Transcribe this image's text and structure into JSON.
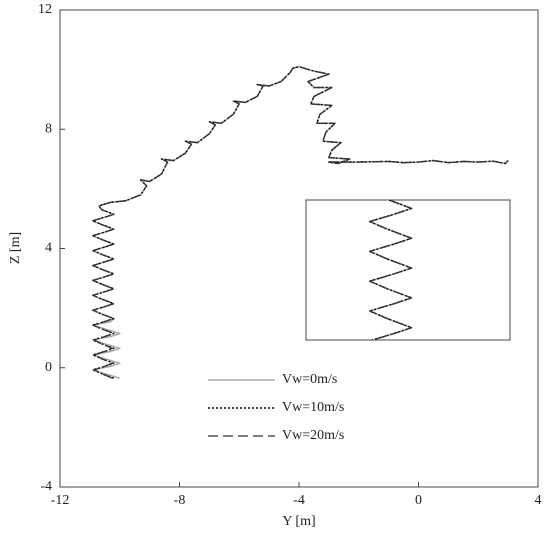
{
  "chart_data": {
    "type": "line",
    "xlabel": "Y [m]",
    "ylabel": "Z [m]",
    "xlim": [
      -12,
      4
    ],
    "ylim": [
      -4,
      12
    ],
    "xticks": [
      -12,
      -8,
      -4,
      0,
      4
    ],
    "yticks": [
      -4,
      0,
      4,
      8,
      12
    ],
    "series": [
      {
        "name": "Vw=0m/s",
        "color": "#aaaaaa",
        "style": "solid",
        "x": [
          -10.0,
          -10.5,
          -10.9,
          -10.3,
          -10.0,
          -10.5,
          -10.9,
          -10.3,
          -10.0,
          -10.5,
          -10.9,
          -10.3,
          -10.0,
          -10.5,
          -10.9,
          -10.3,
          -10.2,
          -10.6,
          -10.9,
          -10.5,
          -10.2,
          -10.6,
          -10.9,
          -10.5,
          -10.2,
          -10.6,
          -10.9,
          -10.5,
          -10.2,
          -10.6,
          -10.9,
          -10.5,
          -10.2,
          -10.6,
          -10.9,
          -10.5,
          -10.2,
          -10.6,
          -10.9,
          -10.5,
          -10.2,
          -10.6,
          -10.9,
          -10.5,
          -10.2,
          -10.6,
          -10.7,
          -10.3,
          -9.8,
          -9.3,
          -9.1,
          -9.3,
          -9.0,
          -8.6,
          -8.4,
          -8.6,
          -8.2,
          -7.8,
          -7.6,
          -7.8,
          -7.4,
          -7.0,
          -6.8,
          -7.0,
          -6.6,
          -6.2,
          -6.0,
          -6.2,
          -5.8,
          -5.4,
          -5.2,
          -5.4,
          -5.0,
          -4.6,
          -4.3,
          -4.2,
          -4.0,
          -3.5,
          -3.0,
          -3.7,
          -3.5,
          -2.9,
          -3.5,
          -3.6,
          -2.9,
          -3.3,
          -3.4,
          -2.8,
          -3.1,
          -3.2,
          -2.6,
          -2.9,
          -3.0,
          -2.3,
          -2.7,
          -3.0,
          -2.0,
          -1.0,
          -0.5,
          0,
          0.5,
          1,
          1.5,
          2,
          2.5,
          2.9,
          3.0
        ],
        "values": [
          -0.35,
          -0.2,
          -0.07,
          0.05,
          0.15,
          0.3,
          0.43,
          0.55,
          0.65,
          0.8,
          0.93,
          1.05,
          1.15,
          1.3,
          1.43,
          1.55,
          1.65,
          1.8,
          1.93,
          2.05,
          2.15,
          2.3,
          2.43,
          2.55,
          2.65,
          2.8,
          2.93,
          3.05,
          3.15,
          3.3,
          3.43,
          3.55,
          3.65,
          3.8,
          3.93,
          4.05,
          4.15,
          4.3,
          4.43,
          4.55,
          4.65,
          4.8,
          4.93,
          5.05,
          5.15,
          5.3,
          5.43,
          5.55,
          5.6,
          5.8,
          6.1,
          6.3,
          6.25,
          6.5,
          6.9,
          7.0,
          6.95,
          7.2,
          7.5,
          7.6,
          7.55,
          7.85,
          8.15,
          8.25,
          8.2,
          8.5,
          8.85,
          8.95,
          8.9,
          9.1,
          9.45,
          9.5,
          9.45,
          9.6,
          9.9,
          10.05,
          10.1,
          9.95,
          9.85,
          9.6,
          9.4,
          9.4,
          9.1,
          8.85,
          8.8,
          8.5,
          8.2,
          8.2,
          7.9,
          7.6,
          7.55,
          7.3,
          7.05,
          7.0,
          6.85,
          6.9,
          6.9,
          6.92,
          6.88,
          6.9,
          6.95,
          6.88,
          6.92,
          6.9,
          6.93,
          6.85,
          6.95
        ]
      },
      {
        "name": "Vw=10m/s",
        "color": "#000000",
        "style": "dotted",
        "x": [
          -10.2,
          -10.6,
          -10.9,
          -10.5,
          -10.2,
          -10.6,
          -10.9,
          -10.5,
          -10.2,
          -10.6,
          -10.9,
          -10.5,
          -10.2,
          -10.6,
          -10.9,
          -10.5,
          -10.2,
          -10.6,
          -10.9,
          -10.5,
          -10.2,
          -10.6,
          -10.9,
          -10.5,
          -10.2,
          -10.6,
          -10.9,
          -10.5,
          -10.2,
          -10.6,
          -10.9,
          -10.5,
          -10.2,
          -10.6,
          -10.9,
          -10.5,
          -10.2,
          -10.6,
          -10.9,
          -10.5,
          -10.2,
          -10.6,
          -10.9,
          -10.5,
          -10.2,
          -10.6,
          -10.7,
          -10.3,
          -9.8,
          -9.3,
          -9.1,
          -9.3,
          -9.0,
          -8.6,
          -8.4,
          -8.6,
          -8.2,
          -7.8,
          -7.6,
          -7.8,
          -7.4,
          -7.0,
          -6.8,
          -7.0,
          -6.6,
          -6.2,
          -6.0,
          -6.2,
          -5.8,
          -5.4,
          -5.2,
          -5.4,
          -5.0,
          -4.6,
          -4.3,
          -4.2,
          -4.0,
          -3.5,
          -3.0,
          -3.7,
          -3.5,
          -2.9,
          -3.5,
          -3.6,
          -2.9,
          -3.3,
          -3.4,
          -2.8,
          -3.1,
          -3.2,
          -2.6,
          -2.9,
          -3.0,
          -2.3,
          -2.7,
          -3.0,
          -2.0,
          -1.0,
          -0.5,
          0,
          0.5,
          1,
          1.5,
          2,
          2.5,
          2.9,
          3.0
        ],
        "values": [
          -0.35,
          -0.2,
          -0.07,
          0.05,
          0.15,
          0.3,
          0.43,
          0.55,
          0.65,
          0.8,
          0.93,
          1.05,
          1.15,
          1.3,
          1.43,
          1.55,
          1.65,
          1.8,
          1.93,
          2.05,
          2.15,
          2.3,
          2.43,
          2.55,
          2.65,
          2.8,
          2.93,
          3.05,
          3.15,
          3.3,
          3.43,
          3.55,
          3.65,
          3.8,
          3.93,
          4.05,
          4.15,
          4.3,
          4.43,
          4.55,
          4.65,
          4.8,
          4.93,
          5.05,
          5.15,
          5.3,
          5.43,
          5.55,
          5.6,
          5.8,
          6.1,
          6.3,
          6.25,
          6.5,
          6.9,
          7.0,
          6.95,
          7.2,
          7.5,
          7.6,
          7.55,
          7.85,
          8.15,
          8.25,
          8.2,
          8.5,
          8.85,
          8.95,
          8.9,
          9.1,
          9.45,
          9.5,
          9.45,
          9.6,
          9.9,
          10.05,
          10.1,
          9.95,
          9.85,
          9.6,
          9.4,
          9.4,
          9.1,
          8.85,
          8.8,
          8.5,
          8.2,
          8.2,
          7.9,
          7.6,
          7.55,
          7.3,
          7.05,
          7.0,
          6.85,
          6.9,
          6.9,
          6.92,
          6.88,
          6.9,
          6.95,
          6.88,
          6.92,
          6.9,
          6.93,
          6.85,
          6.95
        ]
      },
      {
        "name": "Vw=20m/s",
        "color": "#333333",
        "style": "dashed",
        "x": [
          -10.25,
          -10.6,
          -10.85,
          -10.5,
          -10.25,
          -10.6,
          -10.85,
          -10.5,
          -10.25,
          -10.6,
          -10.85,
          -10.5,
          -10.2,
          -10.6,
          -10.9,
          -10.5,
          -10.2,
          -10.6,
          -10.9,
          -10.5,
          -10.2,
          -10.6,
          -10.9,
          -10.5,
          -10.2,
          -10.6,
          -10.9,
          -10.5,
          -10.2,
          -10.6,
          -10.9,
          -10.5,
          -10.2,
          -10.6,
          -10.9,
          -10.5,
          -10.2,
          -10.6,
          -10.9,
          -10.5,
          -10.2,
          -10.6,
          -10.9,
          -10.5,
          -10.2,
          -10.6,
          -10.7,
          -10.3,
          -9.8,
          -9.3,
          -9.1,
          -9.3,
          -9.0,
          -8.6,
          -8.4,
          -8.6,
          -8.2,
          -7.8,
          -7.6,
          -7.8,
          -7.4,
          -7.0,
          -6.8,
          -7.0,
          -6.6,
          -6.2,
          -6.0,
          -6.2,
          -5.8,
          -5.4,
          -5.2,
          -5.4,
          -5.0,
          -4.6,
          -4.3,
          -4.2,
          -4.0,
          -3.5,
          -3.0,
          -3.7,
          -3.5,
          -2.9,
          -3.5,
          -3.6,
          -2.9,
          -3.3,
          -3.4,
          -2.8,
          -3.1,
          -3.2,
          -2.6,
          -2.9,
          -3.0,
          -2.3,
          -2.7,
          -3.0,
          -2.0,
          -1.0,
          -0.5,
          0,
          0.5,
          1,
          1.5,
          2,
          2.5,
          2.9,
          3.0
        ],
        "values": [
          -0.35,
          -0.2,
          -0.07,
          0.05,
          0.15,
          0.3,
          0.43,
          0.55,
          0.65,
          0.8,
          0.93,
          1.05,
          1.15,
          1.3,
          1.43,
          1.55,
          1.65,
          1.8,
          1.93,
          2.05,
          2.15,
          2.3,
          2.43,
          2.55,
          2.65,
          2.8,
          2.93,
          3.05,
          3.15,
          3.3,
          3.43,
          3.55,
          3.65,
          3.8,
          3.93,
          4.05,
          4.15,
          4.3,
          4.43,
          4.55,
          4.65,
          4.8,
          4.93,
          5.05,
          5.15,
          5.3,
          5.43,
          5.55,
          5.6,
          5.8,
          6.1,
          6.3,
          6.25,
          6.5,
          6.9,
          7.0,
          6.95,
          7.2,
          7.5,
          7.6,
          7.55,
          7.85,
          8.15,
          8.25,
          8.2,
          8.5,
          8.85,
          8.95,
          8.9,
          9.1,
          9.45,
          9.5,
          9.45,
          9.6,
          9.9,
          10.05,
          10.1,
          9.95,
          9.85,
          9.6,
          9.4,
          9.4,
          9.1,
          8.85,
          8.8,
          8.5,
          8.2,
          8.2,
          7.9,
          7.6,
          7.55,
          7.3,
          7.05,
          7.0,
          6.85,
          6.9,
          6.9,
          6.92,
          6.88,
          6.9,
          6.95,
          6.88,
          6.92,
          6.9,
          6.93,
          6.85,
          6.95
        ]
      }
    ]
  }
}
